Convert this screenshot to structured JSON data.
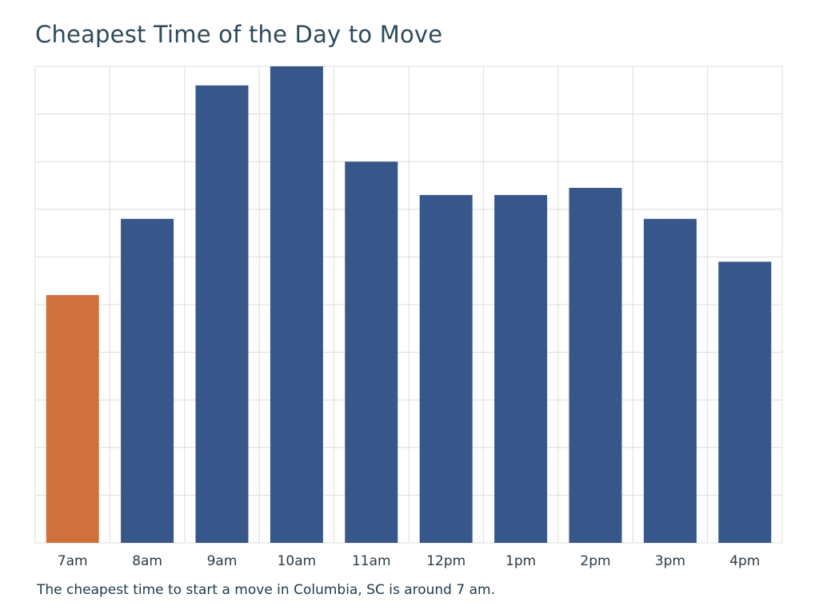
{
  "title": "Cheapest Time of the Day to Move",
  "footnote": "The cheapest time to start a move in Columbia, SC is around 7 am.",
  "colors": {
    "highlight": "#d0703d",
    "default": "#37568a",
    "grid": "#dcdcdc",
    "tick_text": "#2a3a46"
  },
  "chart_data": {
    "type": "bar",
    "title": "Cheapest Time of the Day to Move",
    "xlabel": "",
    "ylabel": "",
    "ylim": [
      0,
      10
    ],
    "grid": true,
    "y_tick_labels_shown": false,
    "categories": [
      "7am",
      "8am",
      "9am",
      "10am",
      "11am",
      "12pm",
      "1pm",
      "2pm",
      "3pm",
      "4pm"
    ],
    "values": [
      5.2,
      6.8,
      9.6,
      10.0,
      8.0,
      7.3,
      7.3,
      7.45,
      6.8,
      5.9
    ],
    "highlight_index": 0
  }
}
